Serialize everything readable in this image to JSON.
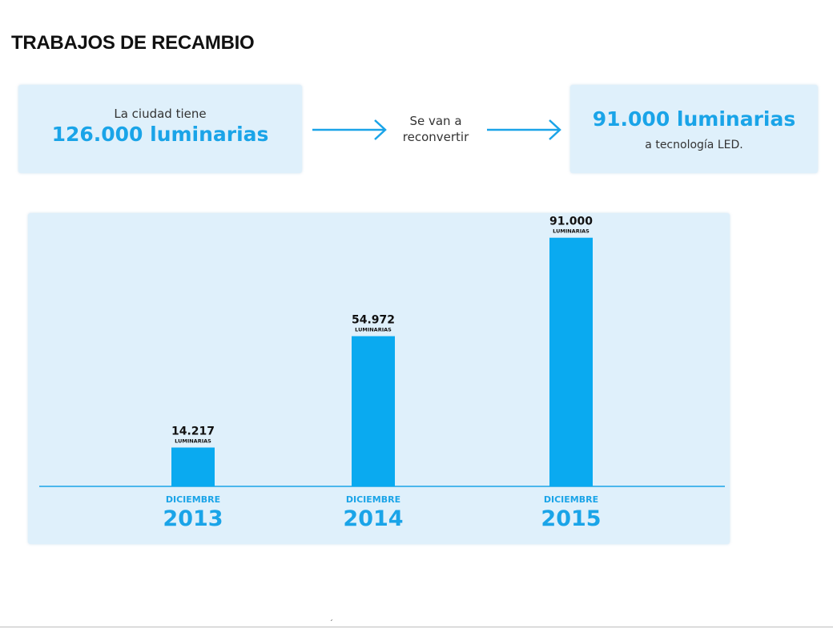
{
  "title": "TRABAJOS DE RECAMBIO",
  "summary": {
    "left_small": "La ciudad tiene",
    "left_big": "126.000 luminarias",
    "middle_line1": "Se van a",
    "middle_line2": "reconvertir",
    "right_big": "91.000 luminarias",
    "right_small": "a tecnología LED."
  },
  "colors": {
    "accent": "#1aa4e8",
    "bar": "#0aaaf0",
    "panel": "#dff0fb"
  },
  "chart_data": {
    "type": "bar",
    "categories": [
      "2013",
      "2014",
      "2015"
    ],
    "category_prefix": "DICIEMBRE",
    "values": [
      14217,
      54972,
      91000
    ],
    "value_labels": [
      "14.217",
      "54.972",
      "91.000"
    ],
    "unit_label": "LUMINARIAS",
    "ylim": [
      0,
      100000
    ],
    "title": "",
    "xlabel": "",
    "ylabel": ""
  },
  "footer_mark": "´"
}
